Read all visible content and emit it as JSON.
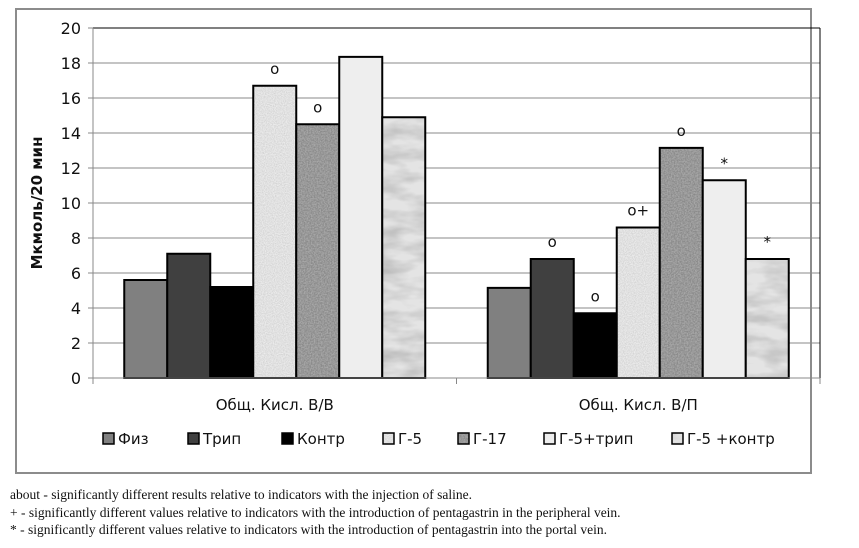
{
  "chart_data": {
    "type": "bar",
    "title": "",
    "xlabel": "",
    "ylabel": "Мкмоль/20 мин",
    "ylim": [
      0,
      20
    ],
    "yticks": [
      0,
      2,
      4,
      6,
      8,
      10,
      12,
      14,
      16,
      18,
      20
    ],
    "grid": true,
    "legend_position": "bottom",
    "categories": [
      "Общ. Кисл.   В/В",
      "Общ. Кисл.   В/П"
    ],
    "series": [
      {
        "name": "Физ",
        "values": [
          5.6,
          5.15
        ],
        "color": "#808080",
        "pattern": "solid",
        "annotations": [
          "",
          ""
        ]
      },
      {
        "name": "Трип",
        "values": [
          7.1,
          6.8
        ],
        "color": "#404040",
        "pattern": "solid",
        "annotations": [
          "",
          "o"
        ]
      },
      {
        "name": "Контр",
        "values": [
          5.2,
          3.7
        ],
        "color": "#000000",
        "pattern": "solid",
        "annotations": [
          "",
          "o"
        ]
      },
      {
        "name": "Г-5",
        "values": [
          16.7,
          8.6
        ],
        "color": "#ededed",
        "pattern": "speckle-light",
        "annotations": [
          "o",
          "o+"
        ]
      },
      {
        "name": "Г-17",
        "values": [
          14.5,
          13.15
        ],
        "color": "#a8a8a8",
        "pattern": "speckle-dark",
        "annotations": [
          "o",
          "o"
        ]
      },
      {
        "name": "Г-5+трип",
        "values": [
          18.35,
          11.3
        ],
        "color": "#eeeeee",
        "pattern": "solid-light",
        "annotations": [
          "",
          "*"
        ]
      },
      {
        "name": "Г-5 +контр",
        "values": [
          14.9,
          6.8
        ],
        "color": "#e4e4e4",
        "pattern": "marble",
        "annotations": [
          "",
          "*"
        ]
      }
    ]
  },
  "footnotes": [
    "about - significantly different results relative to indicators with the injection of saline.",
    "+ - significantly different values relative to indicators with the introduction of pentagastrin in the peripheral vein.",
    "* - significantly different values relative to indicators with the introduction of pentagastrin into the portal vein."
  ]
}
